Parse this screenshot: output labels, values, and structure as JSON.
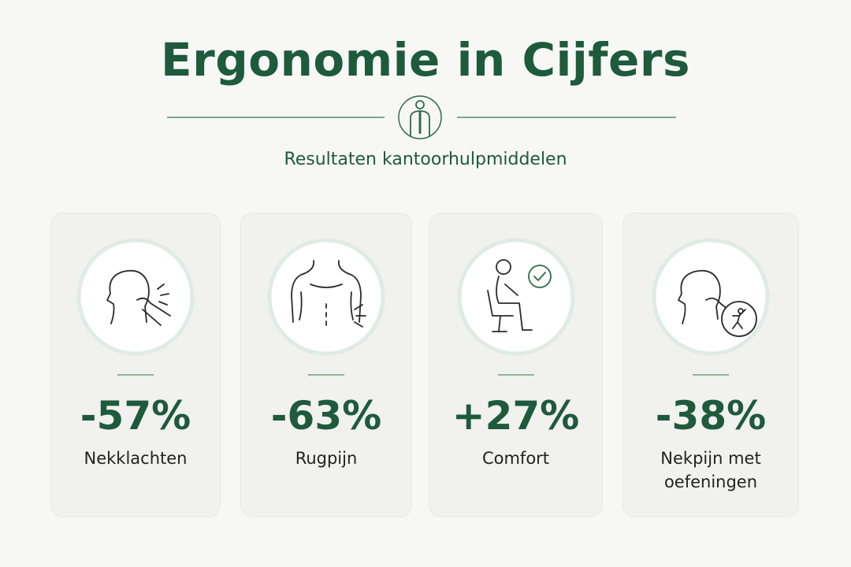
{
  "header": {
    "title": "Ergonomie in Cijfers",
    "subtitle": "Resultaten kantoorhulpmiddelen"
  },
  "cards": [
    {
      "value": "-57%",
      "label": "Nekklachten"
    },
    {
      "value": "-63%",
      "label": "Rugpijn"
    },
    {
      "value": "+27%",
      "label": "Comfort"
    },
    {
      "value": "-38%",
      "label": "Nekpijn met oefeningen"
    }
  ]
}
